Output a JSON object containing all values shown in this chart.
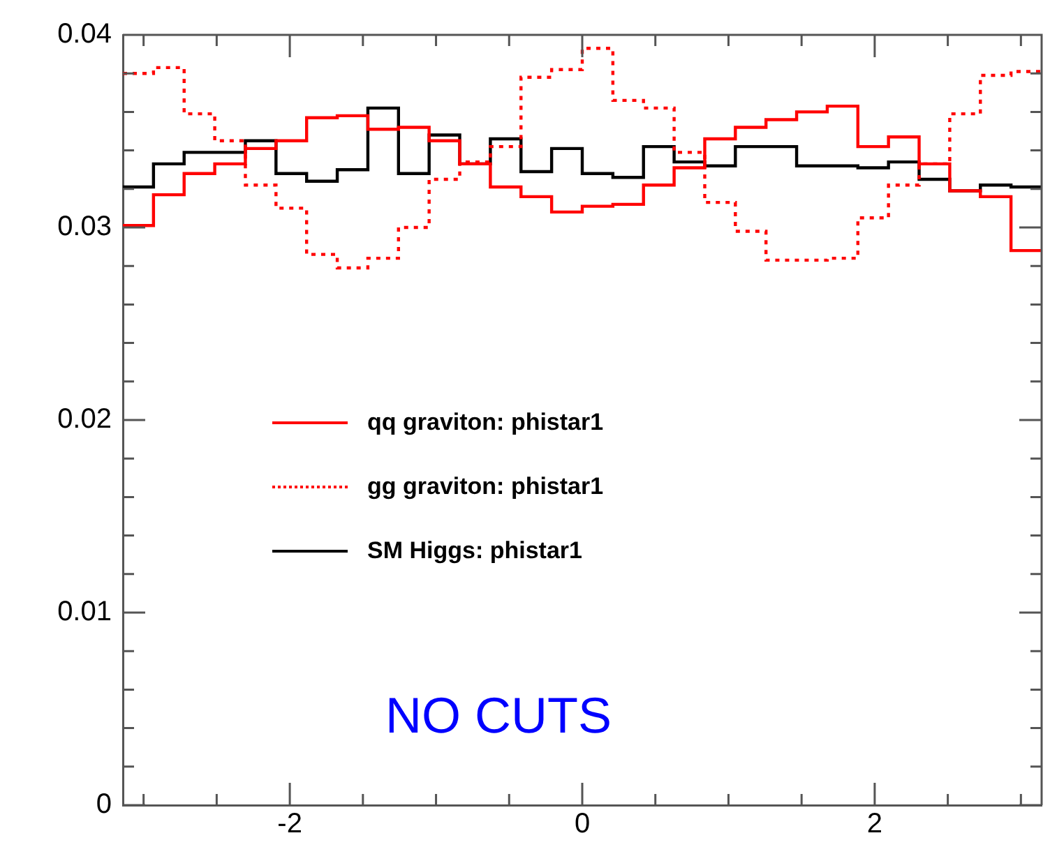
{
  "chart_data": {
    "type": "histogram",
    "bins": [
      -3.1416,
      -2.9322,
      -2.7227,
      -2.5133,
      -2.3038,
      -2.0944,
      -1.885,
      -1.6755,
      -1.4661,
      -1.2566,
      -1.0472,
      -0.8378,
      -0.6283,
      -0.4189,
      -0.2094,
      0,
      0.2094,
      0.4189,
      0.6283,
      0.8378,
      1.0472,
      1.2566,
      1.4661,
      1.6755,
      1.885,
      2.0944,
      2.3038,
      2.5133,
      2.7227,
      2.9322,
      3.1416
    ],
    "series": [
      {
        "name": "qq graviton: phistar1",
        "color": "#ff0000",
        "values": [
          0.0301,
          0.0317,
          0.0328,
          0.0333,
          0.0341,
          0.0345,
          0.0357,
          0.0358,
          0.0351,
          0.0352,
          0.0345,
          0.0333,
          0.0321,
          0.0316,
          0.0308,
          0.0311,
          0.0312,
          0.0322,
          0.0331,
          0.0346,
          0.0352,
          0.0356,
          0.036,
          0.0363,
          0.0342,
          0.0347,
          0.0333,
          0.0319,
          0.0316,
          0.0288
        ]
      },
      {
        "name": "gg graviton: phistar1",
        "color": "#ff0000",
        "line_style": "dotted",
        "values": [
          0.038,
          0.0383,
          0.0359,
          0.0345,
          0.0322,
          0.031,
          0.0286,
          0.0279,
          0.0284,
          0.03,
          0.0325,
          0.0334,
          0.0342,
          0.0378,
          0.0382,
          0.0393,
          0.0366,
          0.0362,
          0.0339,
          0.0313,
          0.0298,
          0.0283,
          0.0283,
          0.0284,
          0.0305,
          0.0322,
          0.0333,
          0.0359,
          0.0379,
          0.0381
        ]
      },
      {
        "name": "SM Higgs: phistar1",
        "color": "#000000",
        "values": [
          0.0321,
          0.0333,
          0.0339,
          0.0339,
          0.0345,
          0.0328,
          0.0324,
          0.033,
          0.0362,
          0.0328,
          0.0348,
          0.0333,
          0.0346,
          0.0329,
          0.0341,
          0.0328,
          0.0326,
          0.0342,
          0.0334,
          0.0332,
          0.0342,
          0.0342,
          0.0332,
          0.0332,
          0.0331,
          0.0334,
          0.0325,
          0.0319,
          0.0322,
          0.0321
        ]
      }
    ],
    "xlim": [
      -3.1416,
      3.1416
    ],
    "xticks": [
      {
        "value": -3,
        "label": null
      },
      {
        "value": -2.5,
        "label": null
      },
      -2,
      {
        "value": -1.5,
        "label": null
      },
      {
        "value": -1,
        "label": null
      },
      {
        "value": -0.5,
        "label": null
      },
      0,
      {
        "value": 0.5,
        "label": null
      },
      {
        "value": 1,
        "label": null
      },
      {
        "value": 1.5,
        "label": null
      },
      2,
      {
        "value": 2.5,
        "label": null
      },
      {
        "value": 3,
        "label": null
      }
    ],
    "ylim": [
      0,
      0.04
    ],
    "yticks": [
      0,
      {
        "value": 0.002,
        "label": null
      },
      {
        "value": 0.004,
        "label": null
      },
      {
        "value": 0.006,
        "label": null
      },
      {
        "value": 0.008,
        "label": null
      },
      0.01,
      {
        "value": 0.012,
        "label": null
      },
      {
        "value": 0.014,
        "label": null
      },
      {
        "value": 0.016,
        "label": null
      },
      {
        "value": 0.018,
        "label": null
      },
      0.02,
      {
        "value": 0.022,
        "label": null
      },
      {
        "value": 0.024,
        "label": null
      },
      {
        "value": 0.026,
        "label": null
      },
      {
        "value": 0.028,
        "label": null
      },
      0.03,
      {
        "value": 0.032,
        "label": null
      },
      {
        "value": 0.034,
        "label": null
      },
      {
        "value": 0.036,
        "label": null
      },
      {
        "value": 0.038,
        "label": null
      },
      0.04
    ],
    "legend": "center left",
    "line_style": "solid",
    "annotations": [
      "NO CUTS"
    ]
  }
}
